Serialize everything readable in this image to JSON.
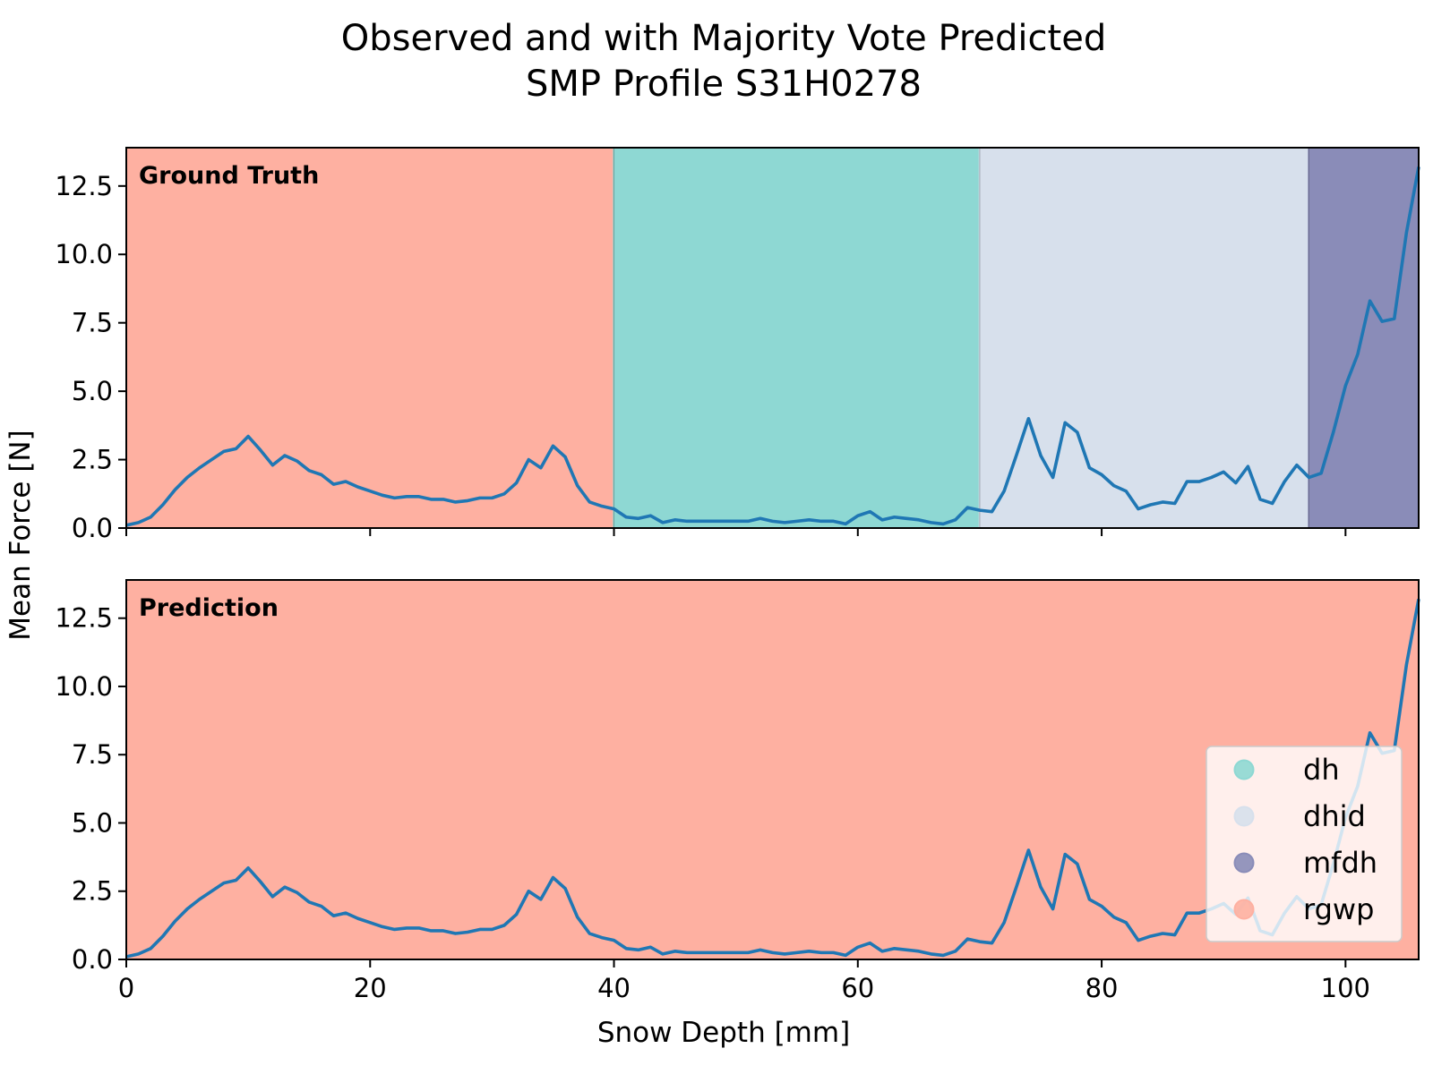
{
  "chart_data": {
    "type": "line",
    "title": "Observed and with Majority Vote Predicted",
    "subtitle": "SMP Profile S31H0278",
    "xlabel": "Snow Depth [mm]",
    "ylabel": "Mean Force [N]",
    "xlim": [
      0,
      106
    ],
    "ylim": [
      0,
      13.9
    ],
    "x_ticks": [
      0,
      20,
      40,
      60,
      80,
      100
    ],
    "y_ticks": [
      "0.0",
      "2.5",
      "5.0",
      "7.5",
      "10.0",
      "12.5"
    ],
    "grid": false,
    "legend_position": "lower-right",
    "classes": [
      {
        "name": "dh",
        "color": "#8ed8d3"
      },
      {
        "name": "dhid",
        "color": "#d7e0ec"
      },
      {
        "name": "mfdh",
        "color": "#8a8cb8"
      },
      {
        "name": "rgwp",
        "color": "#feb0a1"
      }
    ],
    "line_color": "#1f77b4",
    "series": {
      "x": [
        0,
        1,
        2,
        3,
        4,
        5,
        6,
        7,
        8,
        9,
        10,
        11,
        12,
        13,
        14,
        15,
        16,
        17,
        18,
        19,
        20,
        21,
        22,
        23,
        24,
        25,
        26,
        27,
        28,
        29,
        30,
        31,
        32,
        33,
        34,
        35,
        36,
        37,
        38,
        39,
        40,
        41,
        42,
        43,
        44,
        45,
        46,
        47,
        48,
        49,
        50,
        51,
        52,
        53,
        54,
        55,
        56,
        57,
        58,
        59,
        60,
        61,
        62,
        63,
        64,
        65,
        66,
        67,
        68,
        69,
        70,
        71,
        72,
        73,
        74,
        75,
        76,
        77,
        78,
        79,
        80,
        81,
        82,
        83,
        84,
        85,
        86,
        87,
        88,
        89,
        90,
        91,
        92,
        93,
        94,
        95,
        96,
        97,
        98,
        99,
        100,
        101,
        102,
        103,
        104,
        105,
        106
      ],
      "y": [
        0.1,
        0.2,
        0.4,
        0.85,
        1.4,
        1.85,
        2.2,
        2.5,
        2.8,
        2.9,
        3.35,
        2.85,
        2.3,
        2.65,
        2.45,
        2.1,
        1.95,
        1.6,
        1.7,
        1.5,
        1.35,
        1.2,
        1.1,
        1.15,
        1.15,
        1.05,
        1.05,
        0.95,
        1.0,
        1.1,
        1.1,
        1.25,
        1.65,
        2.5,
        2.2,
        3.0,
        2.6,
        1.55,
        0.95,
        0.8,
        0.7,
        0.4,
        0.35,
        0.45,
        0.2,
        0.3,
        0.25,
        0.25,
        0.25,
        0.25,
        0.25,
        0.25,
        0.35,
        0.25,
        0.2,
        0.25,
        0.3,
        0.25,
        0.25,
        0.15,
        0.45,
        0.6,
        0.3,
        0.4,
        0.35,
        0.3,
        0.2,
        0.15,
        0.3,
        0.75,
        0.65,
        0.6,
        1.35,
        2.65,
        4.0,
        2.65,
        1.85,
        3.85,
        3.5,
        2.2,
        1.95,
        1.55,
        1.35,
        0.7,
        0.85,
        0.95,
        0.9,
        1.7,
        1.7,
        1.85,
        2.05,
        1.65,
        2.25,
        1.05,
        0.9,
        1.7,
        2.3,
        1.85,
        2.0,
        3.5,
        5.2,
        6.35,
        8.3,
        7.55,
        7.65,
        10.8,
        13.2
      ]
    },
    "panels": [
      {
        "label": "Ground Truth",
        "segments": [
          {
            "from": 0,
            "to": 40,
            "class": "rgwp"
          },
          {
            "from": 40,
            "to": 70,
            "class": "dh"
          },
          {
            "from": 70,
            "to": 97,
            "class": "dhid"
          },
          {
            "from": 97,
            "to": 106,
            "class": "mfdh"
          }
        ]
      },
      {
        "label": "Prediction",
        "segments": [
          {
            "from": 0,
            "to": 106,
            "class": "rgwp"
          }
        ]
      }
    ]
  }
}
